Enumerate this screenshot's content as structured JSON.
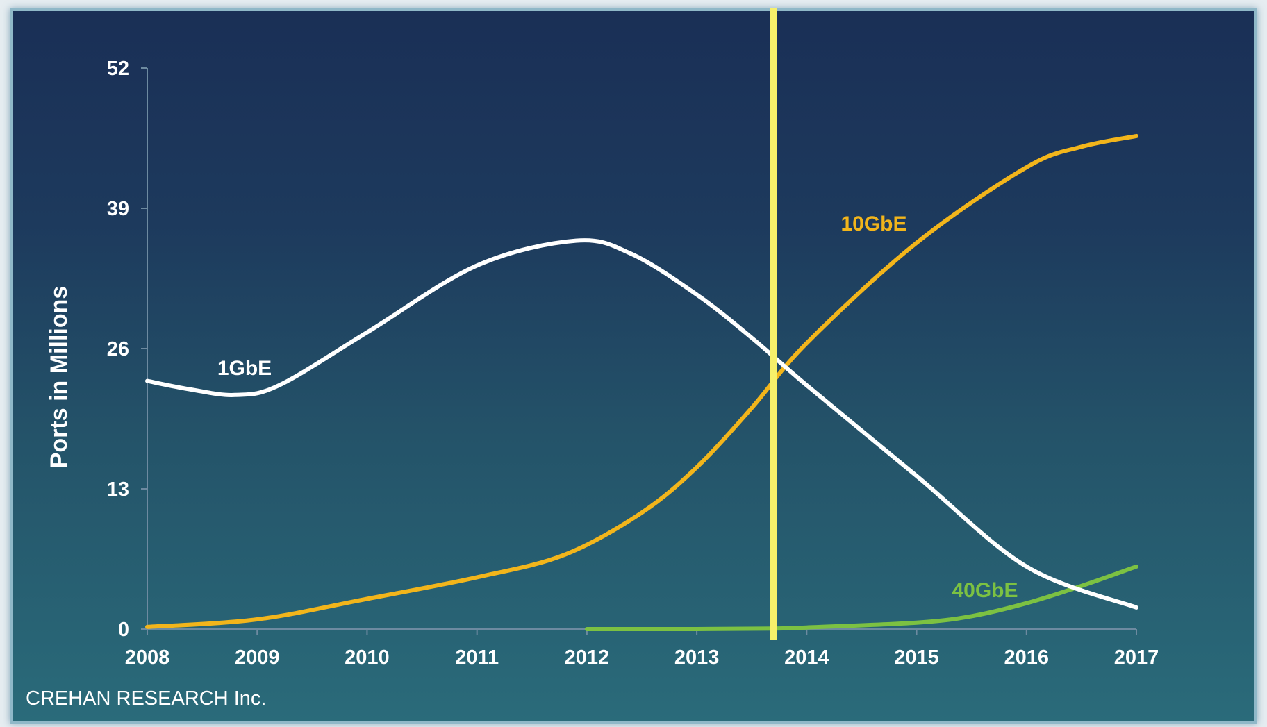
{
  "chart_data": {
    "type": "line",
    "ylabel": "Ports in Millions",
    "xlabel": "",
    "x": [
      2008,
      2009,
      2010,
      2011,
      2012,
      2013,
      2014,
      2015,
      2016,
      2017
    ],
    "xticks": [
      "2008",
      "2009",
      "2010",
      "2011",
      "2012",
      "2013",
      "2014",
      "2015",
      "2016",
      "2017"
    ],
    "yticks": [
      "0",
      "13",
      "26",
      "39",
      "52"
    ],
    "ylim": [
      0,
      52
    ],
    "xlim": [
      2008,
      2017
    ],
    "grid": false,
    "series": [
      {
        "name": "1GbE",
        "color": "#ffffff",
        "x": [
          2008,
          2008.4,
          2008.8,
          2009.2,
          2010,
          2011,
          2011.9,
          2012.4,
          2013,
          2013.5,
          2014,
          2015,
          2016,
          2017
        ],
        "values": [
          23,
          22.2,
          21.7,
          22.6,
          27.5,
          33.7,
          36,
          34.8,
          31,
          27,
          22.6,
          14.2,
          5.8,
          2
        ]
      },
      {
        "name": "10GbE",
        "color": "#f2b51b",
        "x": [
          2008,
          2009,
          2010,
          2011,
          2011.8,
          2012.5,
          2013,
          2013.5,
          2014,
          2015,
          2016,
          2016.5,
          2017
        ],
        "values": [
          0.2,
          0.9,
          2.8,
          4.8,
          6.9,
          10.8,
          15,
          20.5,
          26.5,
          35.8,
          42.8,
          44.7,
          45.7
        ]
      },
      {
        "name": "40GbE",
        "color": "#7cc142",
        "x": [
          2012,
          2013,
          2013.7,
          2014,
          2015,
          2015.5,
          2016,
          2016.5,
          2017
        ],
        "values": [
          0,
          0,
          0.05,
          0.15,
          0.6,
          1.2,
          2.4,
          4,
          5.8
        ]
      }
    ],
    "marker_line": {
      "x": 2013.7,
      "color": "#f7f06a"
    },
    "annotations": [
      {
        "text": "1GbE",
        "color": "#ffffff"
      },
      {
        "text": "10GbE",
        "color": "#f2b51b"
      },
      {
        "text": "40GbE",
        "color": "#7cc142"
      }
    ]
  },
  "source_text": "CREHAN RESEARCH Inc."
}
